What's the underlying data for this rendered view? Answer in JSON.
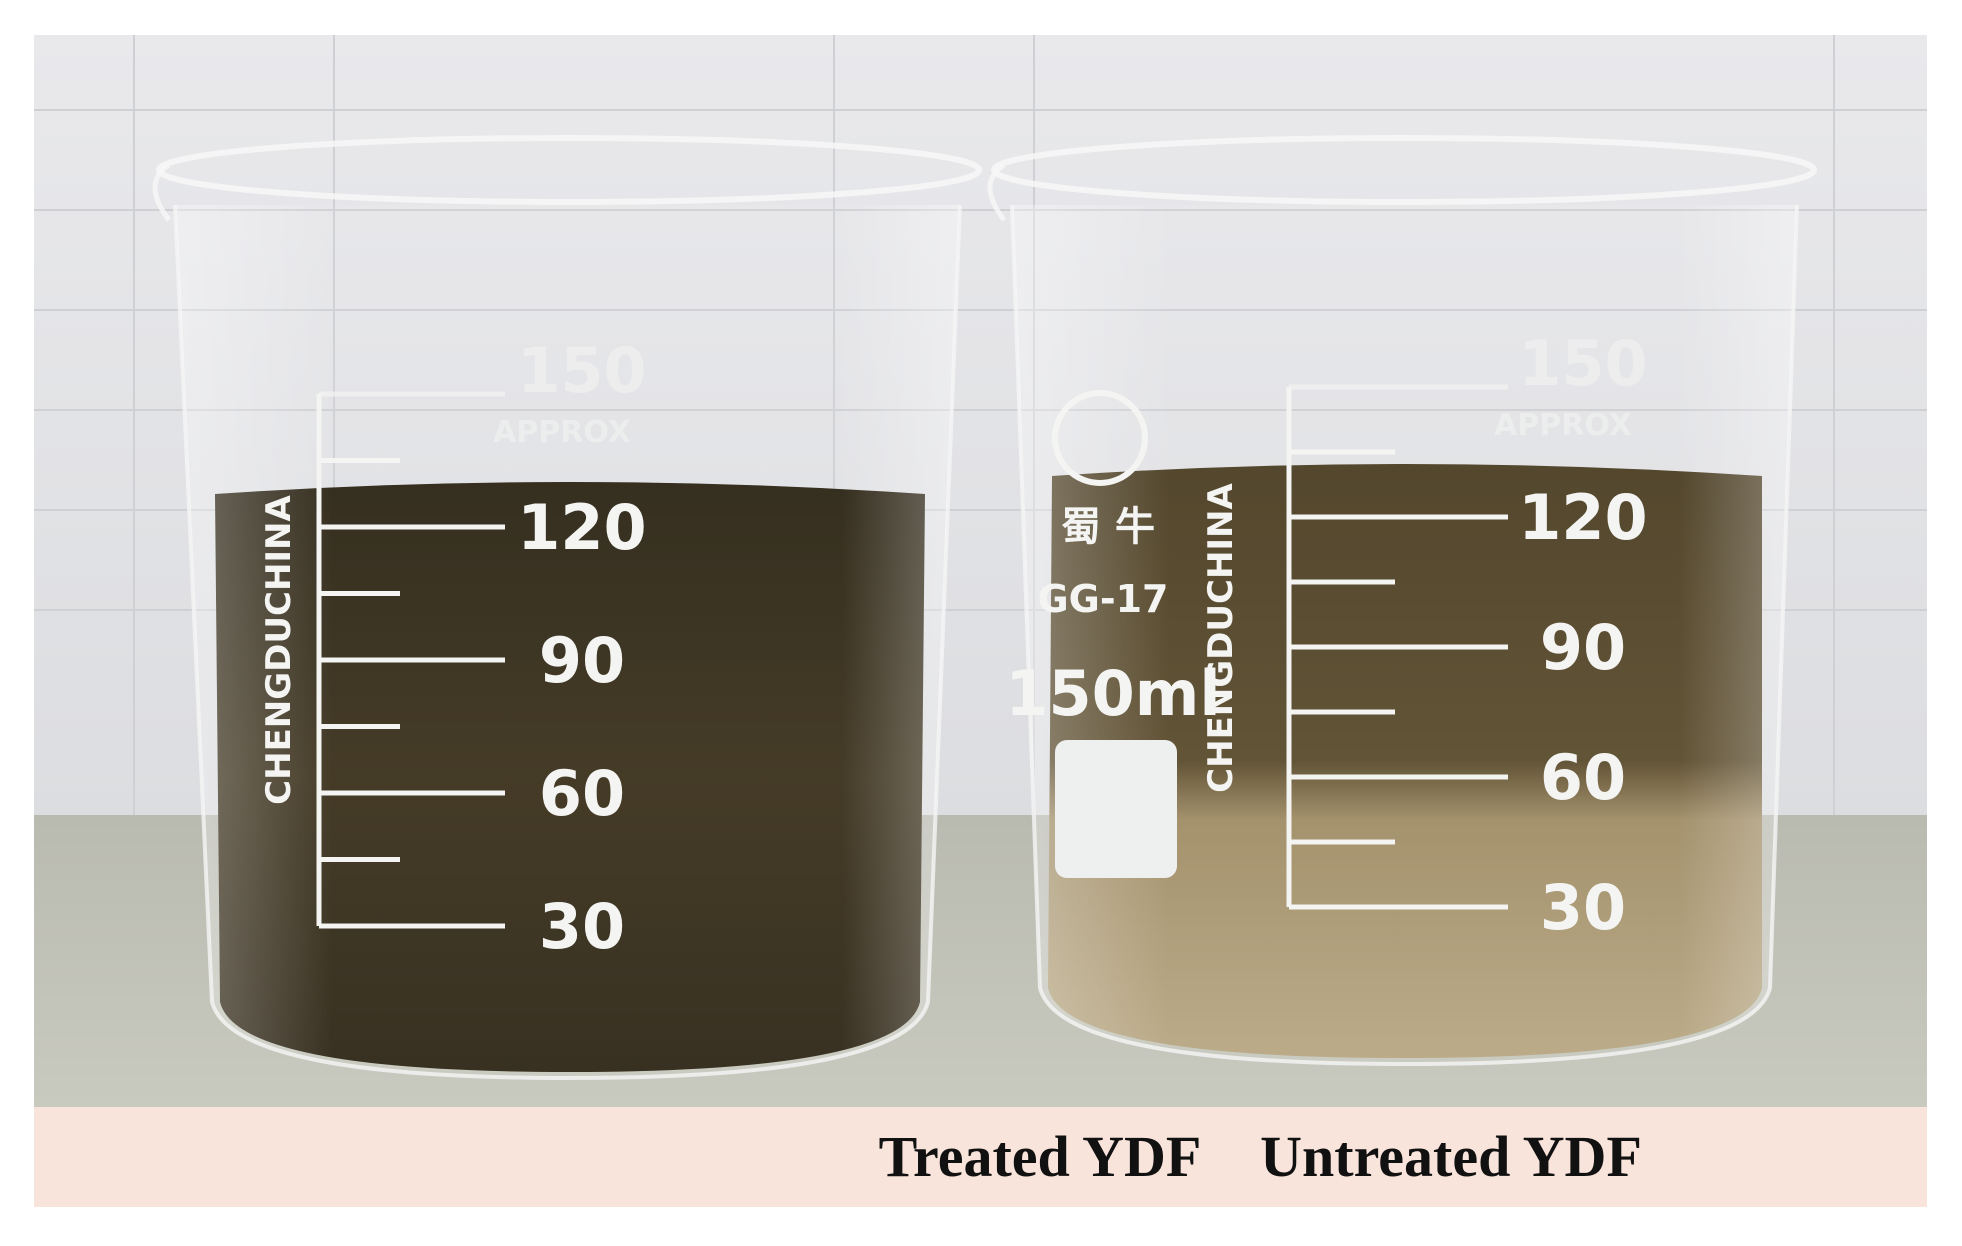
{
  "panels": [
    {
      "caption": "Treated YDF",
      "beaker": {
        "brand": "CHENGDUCHINA",
        "approx": "APPROX",
        "capacity_mark": 150,
        "graduations": [
          120,
          90,
          60,
          30
        ]
      }
    },
    {
      "caption": "Untreated YDF",
      "beaker": {
        "brand": "CHENGDUCHINA",
        "logo": "蜀 牛",
        "model": "GG-17",
        "capacity": "150ml",
        "approx": "APPROX",
        "capacity_mark": 150,
        "graduations": [
          120,
          90,
          60,
          30
        ]
      }
    }
  ]
}
